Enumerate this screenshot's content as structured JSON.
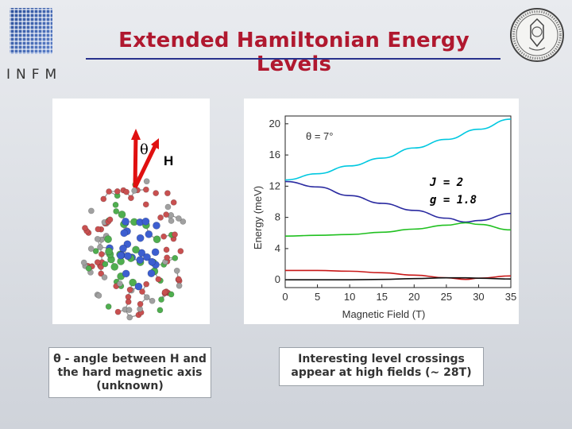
{
  "header": {
    "title": "Extended Hamiltonian Energy Levels",
    "logo_text": "INFM",
    "title_color": "#b0182f",
    "rule_color": "#28318c"
  },
  "molecule": {
    "theta_symbol": "θ",
    "field_label": "H",
    "arrow_color": "#e01010",
    "atom_colors": [
      "#3d5fd0",
      "#4fae4f",
      "#c85050",
      "#a0a0a0"
    ]
  },
  "chart_data": {
    "type": "line",
    "xlabel": "Magnetic Field (T)",
    "ylabel": "Energy (meV)",
    "xlim": [
      0,
      35
    ],
    "ylim": [
      -1,
      21
    ],
    "xticks": [
      0,
      5,
      10,
      15,
      20,
      25,
      30,
      35
    ],
    "yticks": [
      0,
      4,
      8,
      12,
      16,
      20
    ],
    "grid": false,
    "annotations": {
      "theta": "θ = 7°",
      "J": "J = 2",
      "g": "g = 1.8"
    },
    "series": [
      {
        "color": "#00c8e0",
        "x": [
          0,
          5,
          10,
          15,
          20,
          25,
          30,
          35
        ],
        "y": [
          12.8,
          13.6,
          14.6,
          15.6,
          16.9,
          18.0,
          19.3,
          20.6
        ]
      },
      {
        "color": "#2a2aa0",
        "x": [
          0,
          5,
          10,
          15,
          20,
          25,
          28,
          30,
          35
        ],
        "y": [
          12.6,
          11.9,
          10.8,
          9.8,
          8.9,
          7.9,
          7.4,
          7.6,
          8.5
        ]
      },
      {
        "color": "#20c020",
        "x": [
          0,
          5,
          10,
          15,
          20,
          25,
          28,
          30,
          35
        ],
        "y": [
          5.6,
          5.7,
          5.8,
          6.1,
          6.5,
          7.0,
          7.3,
          7.1,
          6.4
        ]
      },
      {
        "color": "#c81818",
        "x": [
          0,
          5,
          10,
          15,
          20,
          25,
          28,
          30,
          35
        ],
        "y": [
          1.2,
          1.2,
          1.1,
          0.9,
          0.6,
          0.25,
          0.05,
          0.2,
          0.5
        ]
      },
      {
        "color": "#111111",
        "x": [
          0,
          5,
          10,
          15,
          20,
          25,
          28,
          30,
          35
        ],
        "y": [
          0,
          0,
          0,
          0.05,
          0.15,
          0.25,
          0.25,
          0.2,
          0.1
        ]
      }
    ]
  },
  "captions": {
    "left": [
      "θ - angle between H and",
      "the hard magnetic axis",
      "(unknown)"
    ],
    "right": [
      "Interesting level crossings",
      "appear at high fields (~ 28T)"
    ]
  }
}
